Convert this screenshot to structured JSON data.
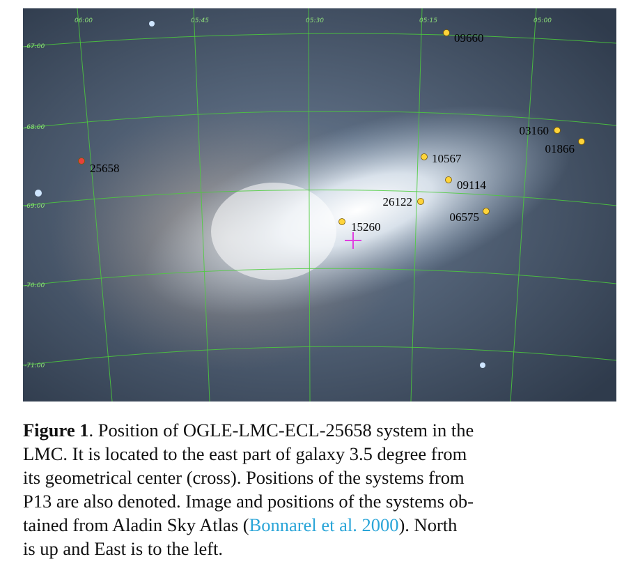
{
  "figure": {
    "ra_labels": [
      "06:00",
      "05:45",
      "05:30",
      "05:15",
      "05:00"
    ],
    "dec_labels": [
      "-67:00",
      "-68:00",
      "-69:00",
      "-70:00",
      "-71:00"
    ],
    "systems": [
      "09660",
      "03160",
      "01866",
      "10567",
      "09114",
      "26122",
      "06575",
      "15260",
      "25658"
    ],
    "caption": {
      "label": "Figure 1",
      "lines": [
        ". Position of OGLE-LMC-ECL-25658 system in the",
        "LMC. It is located to the east part of galaxy 3.5 degree from",
        "its geometrical center (cross). Positions of the systems from",
        "P13 are also denoted. Image and positions of the systems ob-"
      ],
      "line5": {
        "before": "tained from Aladin Sky Atlas (",
        "link": "Bonnarel et al. 2000",
        "after": "). North"
      },
      "line6": "is up and East is to the left."
    }
  }
}
